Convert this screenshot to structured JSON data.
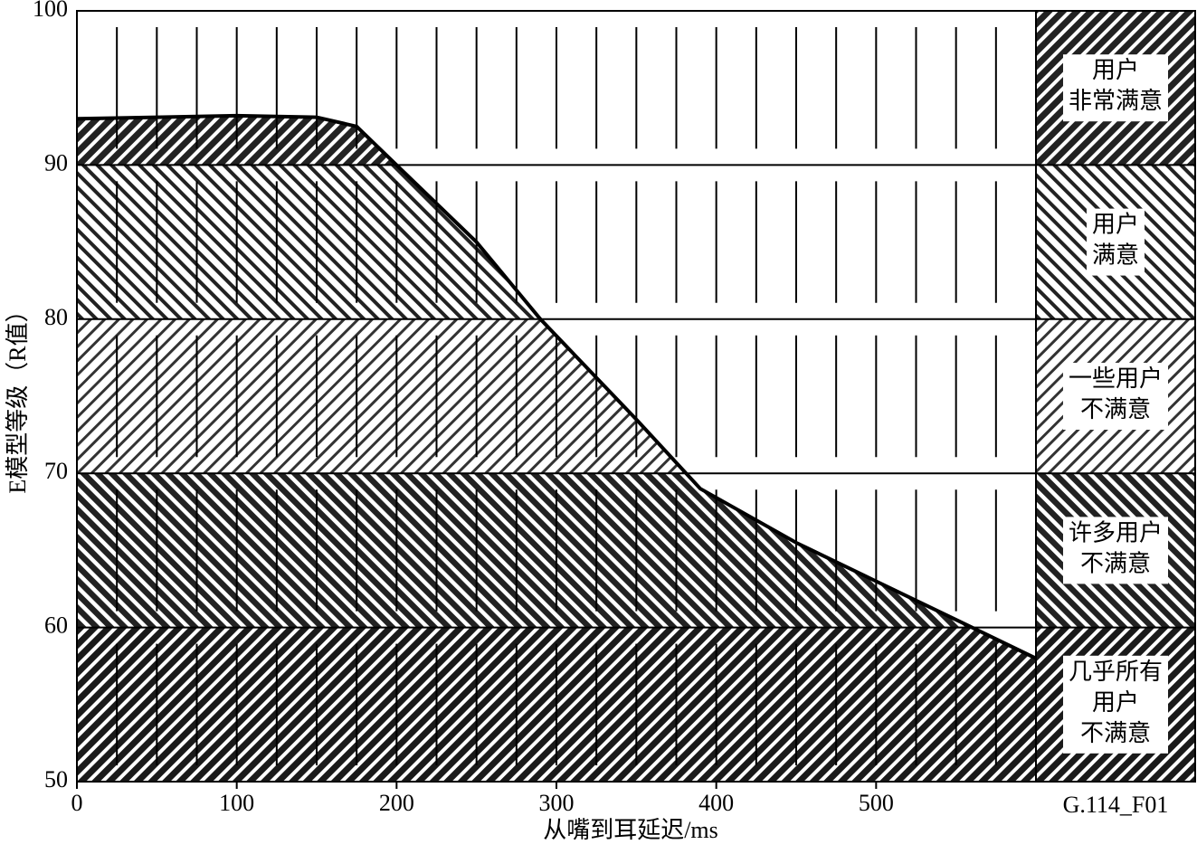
{
  "chart_data": {
    "type": "area",
    "x_label": "从嘴到耳延迟/ms",
    "y_label": "E模型等级（R值）",
    "figure_id": "G.114_F01",
    "x": [
      0,
      50,
      100,
      150,
      175,
      200,
      250,
      290,
      350,
      390,
      450,
      500,
      550,
      600
    ],
    "values": [
      93,
      93.1,
      93.2,
      93.1,
      92.5,
      90,
      85,
      80,
      73.5,
      69,
      65.5,
      63,
      60.5,
      58
    ],
    "xlim": [
      0,
      600
    ],
    "xticks": [
      0,
      100,
      200,
      300,
      400,
      500
    ],
    "ylim": [
      50,
      100
    ],
    "yticks": [
      50,
      60,
      70,
      80,
      90,
      100
    ],
    "bands": [
      {
        "lower": 90,
        "upper": 100,
        "label": [
          "用户",
          "非常满意"
        ]
      },
      {
        "lower": 80,
        "upper": 90,
        "label": [
          "用户",
          "满意"
        ]
      },
      {
        "lower": 70,
        "upper": 80,
        "label": [
          "一些用户",
          "不满意"
        ]
      },
      {
        "lower": 60,
        "upper": 70,
        "label": [
          "许多用户",
          "不满意"
        ]
      },
      {
        "lower": 50,
        "upper": 60,
        "label": [
          "几乎所有",
          "用户",
          "不满意"
        ]
      }
    ]
  }
}
